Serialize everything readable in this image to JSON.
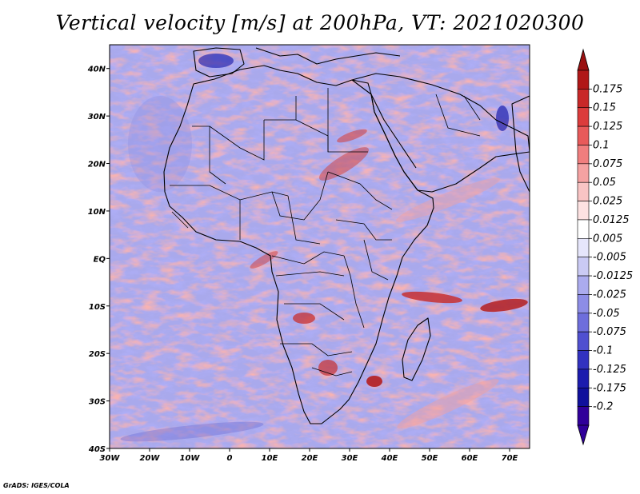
{
  "title": "Vertical velocity [m/s] at 200hPa, VT: 2021020300",
  "credit": "GrADS: IGES/COLA",
  "map": {
    "variable": "Vertical velocity",
    "units": "m/s",
    "level": "200hPa",
    "valid_time": "2021020300",
    "lon_range": [
      -30,
      75
    ],
    "lat_range": [
      -40,
      45
    ],
    "lon_ticks": [
      {
        "value": -30,
        "label": "30W"
      },
      {
        "value": -20,
        "label": "20W"
      },
      {
        "value": -10,
        "label": "10W"
      },
      {
        "value": 0,
        "label": "0"
      },
      {
        "value": 10,
        "label": "10E"
      },
      {
        "value": 20,
        "label": "20E"
      },
      {
        "value": 30,
        "label": "30E"
      },
      {
        "value": 40,
        "label": "40E"
      },
      {
        "value": 50,
        "label": "50E"
      },
      {
        "value": 60,
        "label": "60E"
      },
      {
        "value": 70,
        "label": "70E"
      }
    ],
    "lat_ticks": [
      {
        "value": 40,
        "label": "40N"
      },
      {
        "value": 30,
        "label": "30N"
      },
      {
        "value": 20,
        "label": "20N"
      },
      {
        "value": 10,
        "label": "10N"
      },
      {
        "value": 0,
        "label": "EQ"
      },
      {
        "value": -10,
        "label": "10S"
      },
      {
        "value": -20,
        "label": "20S"
      },
      {
        "value": -30,
        "label": "30S"
      },
      {
        "value": -40,
        "label": "40S"
      }
    ]
  },
  "colorbar": {
    "labels": [
      "0.175",
      "0.15",
      "0.125",
      "0.1",
      "0.075",
      "0.05",
      "0.025",
      "0.0125",
      "0.005",
      "-0.005",
      "-0.0125",
      "-0.025",
      "-0.05",
      "-0.075",
      "-0.1",
      "-0.125",
      "-0.175",
      "-0.2"
    ],
    "colors": [
      "#b01818",
      "#c82828",
      "#dc3c3c",
      "#e85a5a",
      "#f07e7e",
      "#f5a2a2",
      "#f9c4c4",
      "#fde2e2",
      "#ffffff",
      "#e6e6fb",
      "#cacaf4",
      "#ababee",
      "#8d8de6",
      "#6e6edc",
      "#5050d0",
      "#3232c0",
      "#1c1cae",
      "#10109c",
      "#30009a"
    ],
    "top_arrow_color": "#9a1010",
    "bottom_arrow_color": "#30009a"
  }
}
